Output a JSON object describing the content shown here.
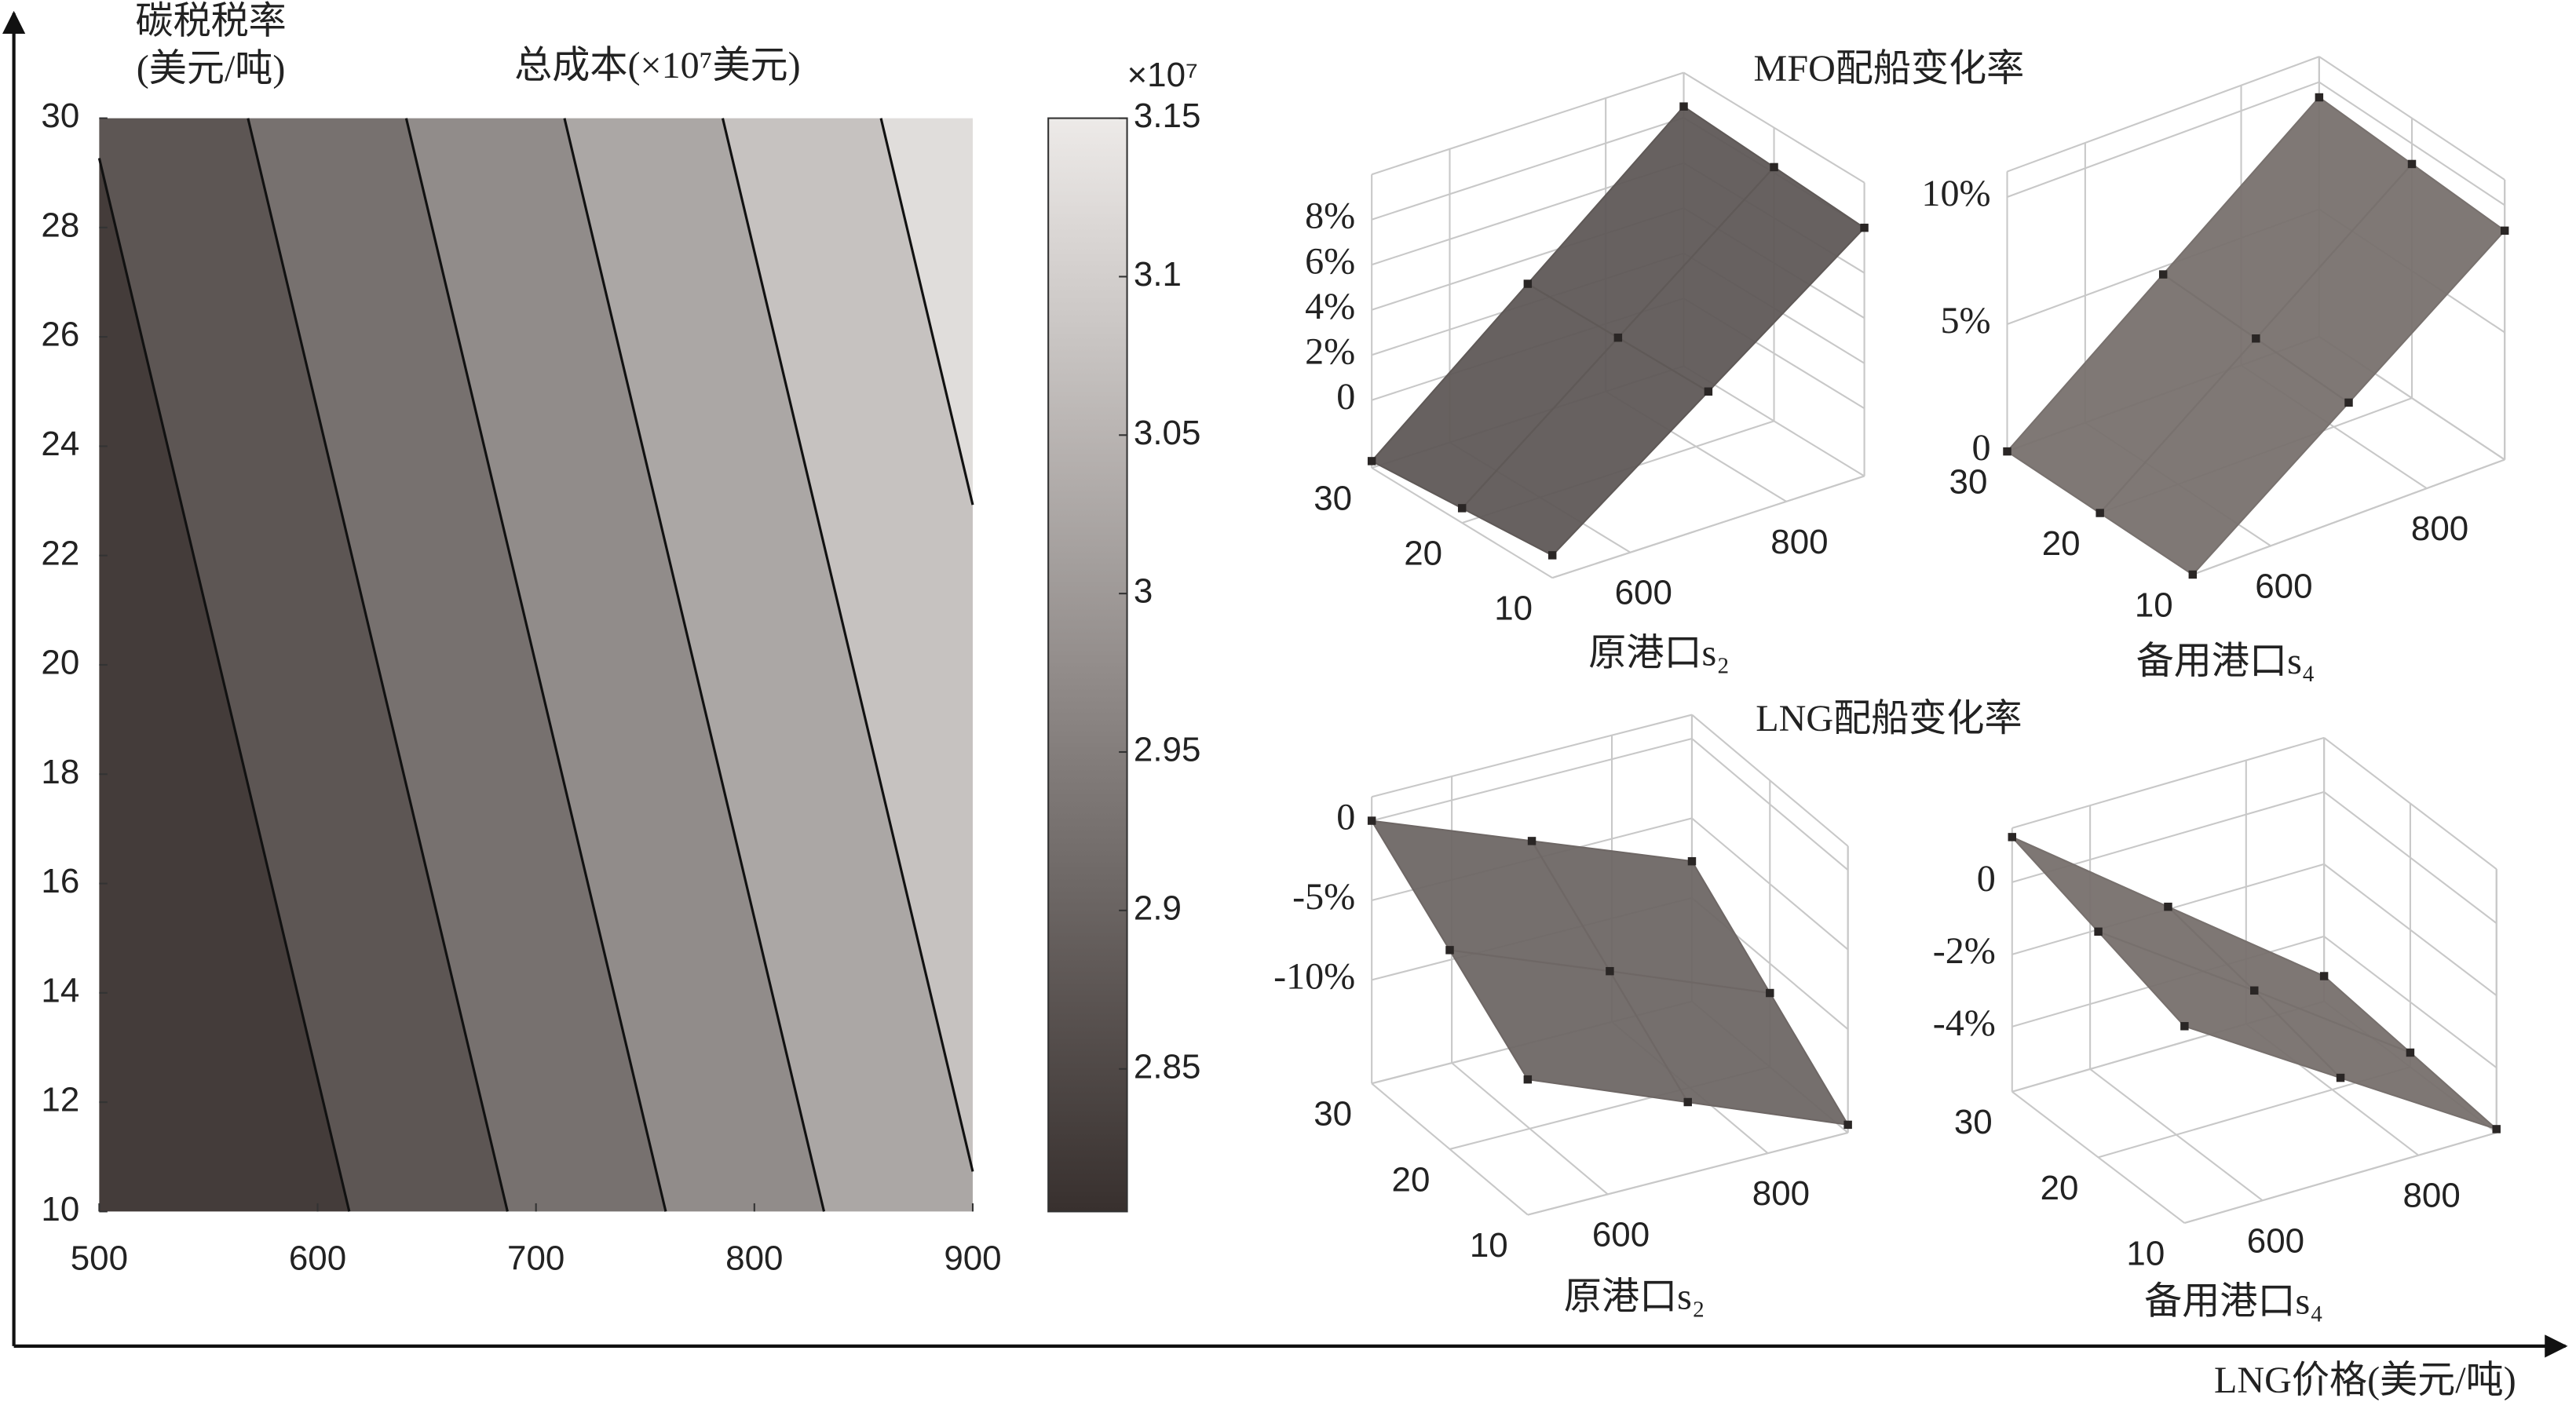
{
  "chart_data": [
    {
      "type": "contour",
      "title": "总成本(×10⁷美元)",
      "ylabel": [
        "碳税税率",
        "(美元/吨)"
      ],
      "xlabel": "LNG价格(美元/吨)",
      "x": [
        500,
        900
      ],
      "y": [
        10,
        30
      ],
      "z": [
        [
          2.771,
          3.047
        ],
        [
          2.853,
          3.129
        ]
      ],
      "levels": [
        2.85,
        2.9,
        2.95,
        3,
        3.05,
        3.1
      ],
      "xlim": [
        500,
        900
      ],
      "xticks": [
        500,
        600,
        700,
        800,
        900
      ],
      "ylim": [
        10,
        30
      ],
      "yticks": [
        10,
        12,
        14,
        16,
        18,
        20,
        22,
        24,
        26,
        28,
        30
      ],
      "clim": [
        2.805,
        3.15
      ],
      "colorbar_ticks": [
        2.85,
        2.9,
        2.95,
        3,
        3.05,
        3.1,
        3.15
      ],
      "colorbar_label": "×10⁷"
    },
    {
      "type": "surface",
      "title": "MFO配船变化率",
      "xlabel": "原港口s₂",
      "color": "#5f5957",
      "x": [
        500,
        700,
        900
      ],
      "y": [
        10,
        20,
        30
      ],
      "z": [
        [
          -2,
          3,
          8
        ],
        [
          -2.35,
          2.95,
          8.25
        ],
        [
          -2.7,
          2.9,
          8.5
        ]
      ],
      "xlim": [
        500,
        900
      ],
      "xticks": [
        600,
        800
      ],
      "ylim": [
        10,
        30
      ],
      "yticks": [
        10,
        20,
        30
      ],
      "zlim": [
        -3,
        10
      ],
      "zticks": [
        0,
        {
          "value": 2,
          "label": "2%"
        },
        {
          "value": 4,
          "label": "4%"
        },
        {
          "value": 6,
          "label": "6%"
        },
        {
          "value": 8,
          "label": "8%"
        }
      ]
    },
    {
      "type": "surface",
      "xlabel": "备用港口s₄",
      "color": "#78716e",
      "x": [
        500,
        700,
        900
      ],
      "y": [
        10,
        20,
        30
      ],
      "z": [
        [
          0,
          4.5,
          9
        ],
        [
          0,
          4.6,
          9.2
        ],
        [
          0,
          4.7,
          9.4
        ]
      ],
      "xlim": [
        500,
        900
      ],
      "xticks": [
        600,
        800
      ],
      "ylim": [
        10,
        30
      ],
      "yticks": [
        10,
        20,
        30
      ],
      "zlim": [
        0,
        11
      ],
      "zticks": [
        0,
        {
          "value": 5,
          "label": "5%"
        },
        {
          "value": 10,
          "label": "10%"
        }
      ]
    },
    {
      "type": "surface",
      "title": "LNG配船变化率",
      "xlabel": "原港口s₂",
      "color": "#6e6765",
      "x": [
        500,
        700,
        900
      ],
      "y": [
        10,
        20,
        30
      ],
      "z": [
        [
          -8,
          -12,
          -16
        ],
        [
          -4,
          -7.9,
          -11.85
        ],
        [
          0,
          -3.85,
          -7.7
        ]
      ],
      "xlim": [
        500,
        900
      ],
      "xticks": [
        600,
        800
      ],
      "ylim": [
        10,
        30
      ],
      "yticks": [
        10,
        20,
        30
      ],
      "zlim": [
        -16.5,
        1.5
      ],
      "zticks": [
        0,
        {
          "value": -5,
          "label": "-5%"
        },
        {
          "value": -10,
          "label": "-10%"
        }
      ]
    },
    {
      "type": "surface",
      "xlabel": "备用港口s₄",
      "color": "#77706d",
      "x": [
        500,
        700,
        900
      ],
      "y": [
        10,
        20,
        30
      ],
      "z": [
        [
          -0.35,
          -3.03,
          -5.7
        ],
        [
          0.45,
          -2.43,
          -5.4
        ],
        [
          1.25,
          -1.93,
          -5.1
        ]
      ],
      "xlim": [
        500,
        900
      ],
      "xticks": [
        600,
        800
      ],
      "ylim": [
        10,
        30
      ],
      "yticks": [
        10,
        20,
        30
      ],
      "zlim": [
        -5.8,
        1.5
      ],
      "zticks": [
        0,
        {
          "value": -2,
          "label": "-2%"
        },
        {
          "value": -4,
          "label": "-4%"
        }
      ]
    }
  ]
}
